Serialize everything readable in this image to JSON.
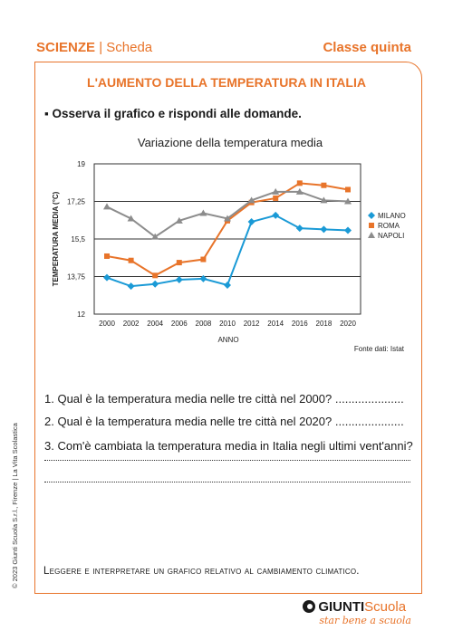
{
  "header": {
    "subject": "SCIENZE",
    "separator": "|",
    "type": "Scheda",
    "grade": "Classe quinta"
  },
  "title": "L'AUMENTO DELLA TEMPERATURA IN ITALIA",
  "instruction": "▪ Osserva il grafico e rispondi alle domande.",
  "chart_data": {
    "type": "line",
    "title": "Variazione della temperatura media",
    "xlabel": "ANNO",
    "ylabel": "TEMPERATURA MEDIA (°C)",
    "x": [
      2000,
      2002,
      2004,
      2006,
      2008,
      2010,
      2012,
      2014,
      2016,
      2018,
      2020
    ],
    "x_ticks": [
      "2000",
      "2002",
      "2004",
      "2006",
      "2008",
      "2010",
      "2012",
      "2014",
      "2016",
      "2018",
      "2020"
    ],
    "y_ticks": [
      "12",
      "13,75",
      "15,5",
      "17,25",
      "19"
    ],
    "ylim": [
      12,
      19
    ],
    "grid": "horizontal",
    "legend_position": "right",
    "source": "Fonte dati: Istat",
    "series": [
      {
        "name": "MILANO",
        "color": "#1a9ad6",
        "marker": "diamond",
        "values": [
          13.7,
          13.3,
          13.4,
          13.6,
          13.65,
          13.35,
          16.3,
          16.6,
          16.0,
          15.95,
          15.9
        ]
      },
      {
        "name": "ROMA",
        "color": "#e8742a",
        "marker": "square",
        "values": [
          14.7,
          14.5,
          13.8,
          14.4,
          14.55,
          16.35,
          17.2,
          17.4,
          18.1,
          18.0,
          17.8
        ]
      },
      {
        "name": "NAPOLI",
        "color": "#8c8c8c",
        "marker": "triangle",
        "values": [
          17.0,
          16.45,
          15.6,
          16.35,
          16.7,
          16.45,
          17.3,
          17.7,
          17.7,
          17.3,
          17.25
        ]
      }
    ]
  },
  "questions": [
    {
      "text": "1. Qual è la temperatura media nelle tre città nel 2000?",
      "dots": "....................."
    },
    {
      "text": "2. Qual è la temperatura media nelle tre città nel 2020?",
      "dots": "....................."
    },
    {
      "text": "3. Com'è cambiata la temperatura media in Italia negli ultimi vent'anni?",
      "dots": ""
    }
  ],
  "footer": "Leggere e interpretare un grafico relativo al cambiamento climatico.",
  "copyright": "© 2023 Giunti Scuola S.r.l., Firenze | La Vita Scolastica",
  "logo": {
    "brand": "GIUNTI",
    "brand_suffix": "Scuola",
    "tagline": "star bene a scuola"
  }
}
